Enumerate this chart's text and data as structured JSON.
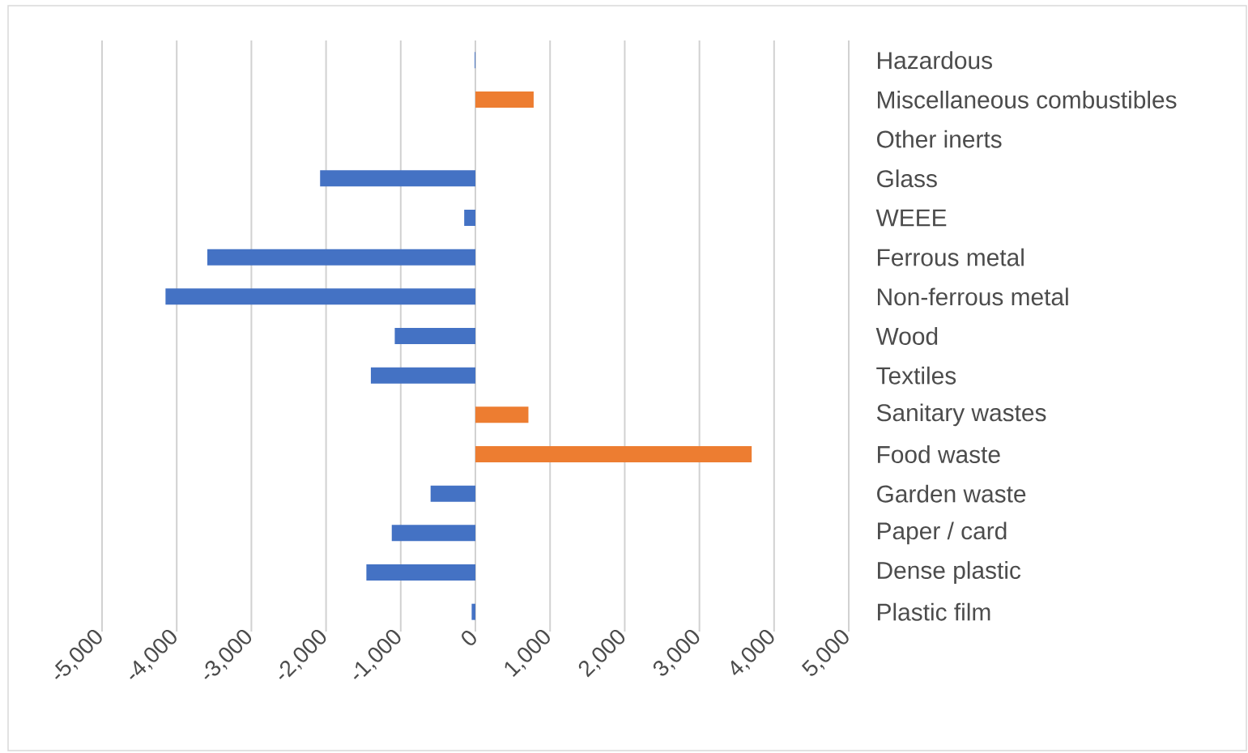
{
  "chart_data": {
    "type": "bar",
    "orientation": "horizontal",
    "categories": [
      "Hazardous",
      "Miscellaneous combustibles",
      "Other inerts",
      "Glass",
      "WEEE",
      "Ferrous metal",
      "Non-ferrous metal",
      "Wood",
      "Textiles",
      "Sanitary wastes",
      "Food waste",
      "Garden waste",
      "Paper / card",
      "Dense plastic",
      "Plastic film"
    ],
    "values": [
      -10,
      780,
      0,
      -2080,
      -150,
      -3590,
      -4150,
      -1080,
      -1400,
      710,
      3700,
      -600,
      -1120,
      -1460,
      -50
    ],
    "colors": [
      "#4472c4",
      "#ed7d31",
      "#4472c4",
      "#4472c4",
      "#4472c4",
      "#4472c4",
      "#4472c4",
      "#4472c4",
      "#4472c4",
      "#ed7d31",
      "#ed7d31",
      "#4472c4",
      "#4472c4",
      "#4472c4",
      "#4472c4"
    ],
    "xlim": [
      -5000,
      5000
    ],
    "xticks": [
      {
        "value": -5000,
        "label": "-5,000"
      },
      {
        "value": -4000,
        "label": "-4,000"
      },
      {
        "value": -3000,
        "label": "-3,000"
      },
      {
        "value": -2000,
        "label": "-2,000"
      },
      {
        "value": -1000,
        "label": "-1,000"
      },
      0,
      {
        "value": 1000,
        "label": "1,000"
      },
      {
        "value": 2000,
        "label": "2,000"
      },
      {
        "value": 3000,
        "label": "3,000"
      },
      {
        "value": 4000,
        "label": "4,000"
      },
      {
        "value": 5000,
        "label": "5,000"
      }
    ],
    "grid": "x"
  }
}
